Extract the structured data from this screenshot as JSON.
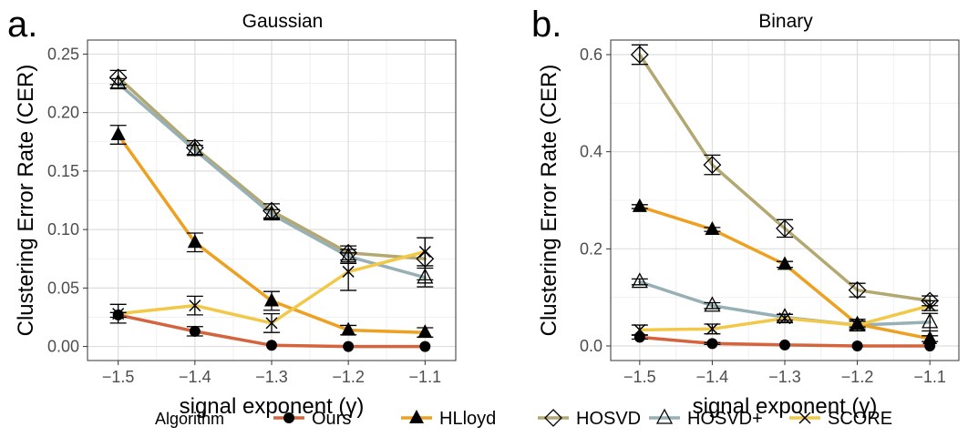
{
  "panel_letters": [
    "a.",
    "b."
  ],
  "legend": {
    "title": "Algorithm",
    "entries": [
      {
        "name": "Ours",
        "color": "#d4643e",
        "marker": "circle"
      },
      {
        "name": "HLloyd",
        "color": "#eea020",
        "marker": "triangle"
      },
      {
        "name": "HOSVD",
        "color": "#b3a872",
        "marker": "diamond"
      },
      {
        "name": "HOSVD+",
        "color": "#97b0b6",
        "marker": "triangle-open"
      },
      {
        "name": "SCORE",
        "color": "#f2c848",
        "marker": "x"
      }
    ]
  },
  "chart_data": [
    {
      "type": "line",
      "title": "Gaussian",
      "xlabel": "signal exponent (γ)",
      "ylabel": "Clustering Error Rate (CER)",
      "x": [
        -1.5,
        -1.4,
        -1.3,
        -1.2,
        -1.1
      ],
      "x_tick_labels": [
        "−1.5",
        "−1.4",
        "−1.3",
        "−1.2",
        "−1.1"
      ],
      "y_ticks": [
        0.0,
        0.05,
        0.1,
        0.15,
        0.2,
        0.25
      ],
      "y_tick_labels": [
        "0.00",
        "0.05",
        "0.10",
        "0.15",
        "0.20",
        "0.25"
      ],
      "xlim": [
        -1.54,
        -1.06
      ],
      "ylim": [
        -0.012,
        0.262
      ],
      "grid": true,
      "series": [
        {
          "name": "Ours",
          "values": [
            0.027,
            0.013,
            0.001,
            0.0,
            0.0
          ],
          "err": [
            0.002,
            0.004,
            0.0,
            0.0,
            0.0
          ]
        },
        {
          "name": "HLloyd",
          "values": [
            0.181,
            0.089,
            0.039,
            0.014,
            0.012
          ],
          "err": [
            0.008,
            0.008,
            0.008,
            0.004,
            0.004
          ]
        },
        {
          "name": "HOSVD",
          "values": [
            0.23,
            0.17,
            0.116,
            0.08,
            0.075
          ],
          "err": [
            0.006,
            0.006,
            0.006,
            0.006,
            0.018
          ]
        },
        {
          "name": "HOSVD+",
          "values": [
            0.225,
            0.168,
            0.113,
            0.077,
            0.059
          ],
          "err": [
            0.004,
            0.004,
            0.004,
            0.006,
            0.008
          ]
        },
        {
          "name": "SCORE",
          "values": [
            0.028,
            0.035,
            0.02,
            0.064,
            0.081
          ],
          "err": [
            0.008,
            0.008,
            0.008,
            0.016,
            0.012
          ]
        }
      ]
    },
    {
      "type": "line",
      "title": "Binary",
      "xlabel": "signal exponent (γ)",
      "ylabel": "Clustering Error Rate (CER)",
      "x": [
        -1.5,
        -1.4,
        -1.3,
        -1.2,
        -1.1
      ],
      "x_tick_labels": [
        "−1.5",
        "−1.4",
        "−1.3",
        "−1.2",
        "−1.1"
      ],
      "y_ticks": [
        0.0,
        0.2,
        0.4,
        0.6
      ],
      "y_tick_labels": [
        "0.0",
        "0.2",
        "0.4",
        "0.6"
      ],
      "xlim": [
        -1.54,
        -1.06
      ],
      "ylim": [
        -0.03,
        0.63
      ],
      "grid": true,
      "series": [
        {
          "name": "Ours",
          "values": [
            0.018,
            0.005,
            0.002,
            0.0,
            0.0
          ],
          "err": [
            0.004,
            0.002,
            0.0,
            0.0,
            0.0
          ]
        },
        {
          "name": "HLloyd",
          "values": [
            0.287,
            0.24,
            0.168,
            0.045,
            0.015
          ],
          "err": [
            0.004,
            0.004,
            0.006,
            0.006,
            0.006
          ]
        },
        {
          "name": "HOSVD",
          "values": [
            0.6,
            0.373,
            0.242,
            0.115,
            0.093
          ],
          "err": [
            0.02,
            0.02,
            0.018,
            0.014,
            0.01
          ]
        },
        {
          "name": "HOSVD+",
          "values": [
            0.132,
            0.083,
            0.059,
            0.043,
            0.049
          ],
          "err": [
            0.006,
            0.006,
            0.006,
            0.012,
            0.018
          ]
        },
        {
          "name": "SCORE",
          "values": [
            0.033,
            0.035,
            0.057,
            0.043,
            0.083
          ],
          "err": [
            0.01,
            0.01,
            0.008,
            0.008,
            0.01
          ]
        }
      ]
    }
  ]
}
